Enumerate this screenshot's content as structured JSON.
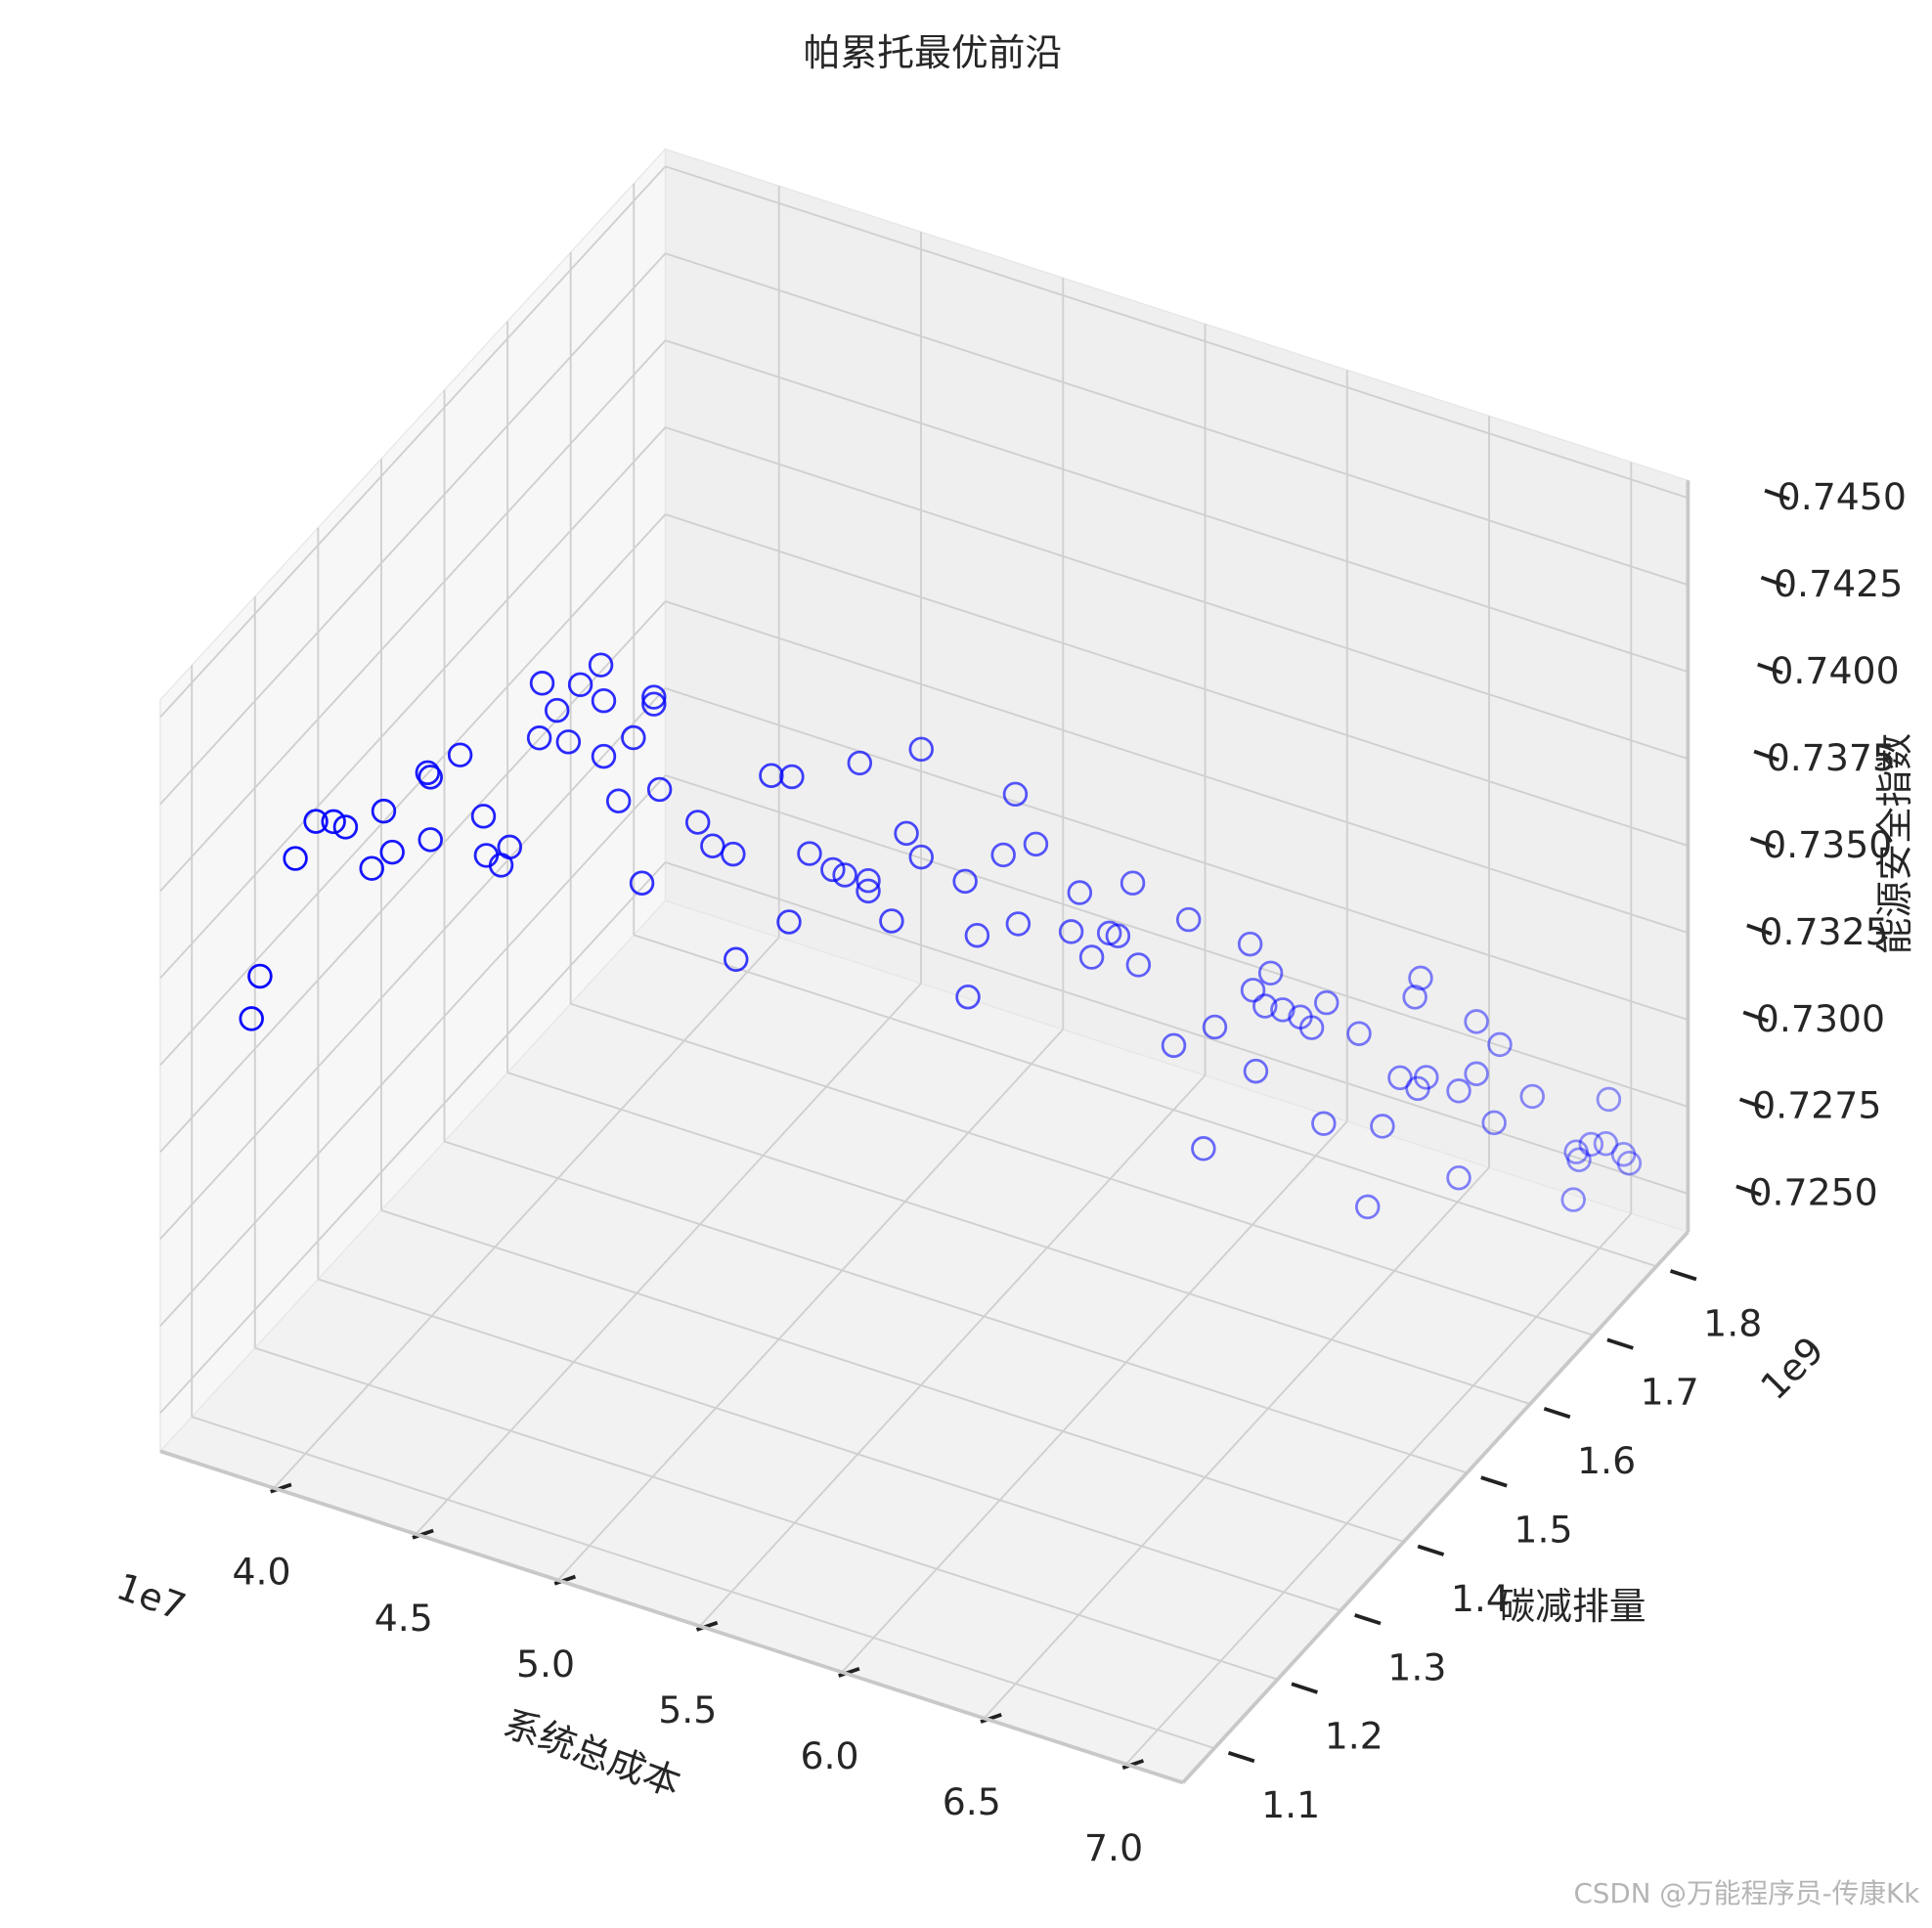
{
  "chart_data": {
    "type": "scatter3d",
    "title": "帕累托最优前沿",
    "xlabel": "系统总成本",
    "ylabel": "碳减排量",
    "zlabel": "能源安全指数",
    "x_offset": "1e7",
    "y_offset": "1e9",
    "xlim": [
      3.6,
      7.2
    ],
    "ylim": [
      1.05,
      1.85
    ],
    "zlim": [
      0.7239,
      0.7455
    ],
    "xticks": [
      {
        "value": 4,
        "label": "4.0"
      },
      4.5,
      {
        "value": 5,
        "label": "5.0"
      },
      5.5,
      {
        "value": 6,
        "label": "6.0"
      },
      6.5,
      {
        "value": 7,
        "label": "7.0"
      }
    ],
    "yticks": [
      1.1,
      1.2,
      1.3,
      1.4,
      1.5,
      1.6,
      1.7,
      1.8
    ],
    "zticks": [
      {
        "value": 0.725,
        "label": "0.7250"
      },
      {
        "value": 0.7275,
        "label": "0.7275"
      },
      {
        "value": 0.73,
        "label": "0.7300"
      },
      {
        "value": 0.7325,
        "label": "0.7325"
      },
      {
        "value": 0.735,
        "label": "0.7350"
      },
      {
        "value": 0.7375,
        "label": "0.7375"
      },
      {
        "value": 0.74,
        "label": "0.7400"
      },
      {
        "value": 0.7425,
        "label": "0.7425"
      },
      {
        "value": 0.745,
        "label": "0.7450"
      }
    ],
    "grid": true,
    "series": [
      {
        "color": "#0000ff",
        "x": [
          3.81,
          3.84,
          3.92,
          3.97,
          4.01,
          4.03,
          4.1,
          4.12,
          4.15,
          4.23,
          4.24,
          4.24,
          4.3,
          4.36,
          4.37,
          4.4,
          4.43,
          4.49,
          4.5,
          4.53,
          4.57,
          4.59,
          4.64,
          4.65,
          4.65,
          4.68,
          4.71,
          4.74,
          4.76,
          4.76,
          4.78,
          4.87,
          4.9,
          4.95,
          4.96,
          5.04,
          5.08,
          5.09,
          5.13,
          5.19,
          5.21,
          5.24,
          5.27,
          5.27,
          5.33,
          5.36,
          5.39,
          5.39,
          5.5,
          5.51,
          5.52,
          5.59,
          5.61,
          5.62,
          5.66,
          5.74,
          5.77,
          5.79,
          5.83,
          5.86,
          5.89,
          5.91,
          5.99,
          6.02,
          6.05,
          6.09,
          6.17,
          6.18,
          6.19,
          6.2,
          6.22,
          6.24,
          6.28,
          6.32,
          6.34,
          6.35,
          6.42,
          6.45,
          6.48,
          6.52,
          6.55,
          6.56,
          6.57,
          6.59,
          6.66,
          6.66,
          6.7,
          6.7,
          6.74,
          6.76,
          6.83,
          6.93,
          6.94,
          6.95,
          6.97,
          7.0,
          7.01,
          7.04,
          7.06
        ],
        "y": [
          1.1,
          1.1,
          1.12,
          1.13,
          1.14,
          1.15,
          1.16,
          1.17,
          1.17,
          1.19,
          1.19,
          1.19,
          1.21,
          1.22,
          1.22,
          1.23,
          1.23,
          1.25,
          1.25,
          1.26,
          1.26,
          1.27,
          1.28,
          1.28,
          1.28,
          1.29,
          1.3,
          1.3,
          1.31,
          1.31,
          1.31,
          1.33,
          1.34,
          1.35,
          1.35,
          1.37,
          1.38,
          1.38,
          1.39,
          1.4,
          1.41,
          1.42,
          1.42,
          1.42,
          1.43,
          1.44,
          1.45,
          1.45,
          1.47,
          1.47,
          1.48,
          1.49,
          1.5,
          1.5,
          1.51,
          1.53,
          1.53,
          1.54,
          1.55,
          1.55,
          1.56,
          1.56,
          1.58,
          1.59,
          1.6,
          1.6,
          1.62,
          1.62,
          1.62,
          1.63,
          1.63,
          1.64,
          1.65,
          1.65,
          1.66,
          1.66,
          1.68,
          1.68,
          1.69,
          1.7,
          1.71,
          1.71,
          1.71,
          1.71,
          1.73,
          1.73,
          1.74,
          1.74,
          1.75,
          1.75,
          1.77,
          1.79,
          1.79,
          1.79,
          1.8,
          1.81,
          1.81,
          1.82,
          1.82
        ],
        "z": [
          0.7359,
          0.7372,
          0.7404,
          0.7414,
          0.7413,
          0.741,
          0.7398,
          0.7413,
          0.7402,
          0.7423,
          0.7422,
          0.7404,
          0.7426,
          0.7408,
          0.7397,
          0.7393,
          0.7399,
          0.7428,
          0.7444,
          0.7435,
          0.7427,
          0.7442,
          0.7447,
          0.7437,
          0.7421,
          0.7407,
          0.7424,
          0.7383,
          0.7435,
          0.7433,
          0.7409,
          0.7398,
          0.739,
          0.7387,
          0.7357,
          0.7408,
          0.7365,
          0.7407,
          0.7384,
          0.7379,
          0.7376,
          0.7407,
          0.7374,
          0.7371,
          0.7362,
          0.7386,
          0.7378,
          0.7409,
          0.737,
          0.7337,
          0.7353,
          0.7376,
          0.7392,
          0.7355,
          0.7377,
          0.735,
          0.7362,
          0.7342,
          0.7348,
          0.7348,
          0.7362,
          0.7339,
          0.7314,
          0.7349,
          0.7282,
          0.7318,
          0.734,
          0.7327,
          0.7304,
          0.7321,
          0.7331,
          0.7319,
          0.7316,
          0.7314,
          0.7285,
          0.732,
          0.7309,
          0.726,
          0.7282,
          0.7295,
          0.7317,
          0.7291,
          0.7323,
          0.7295,
          0.7264,
          0.7289,
          0.7293,
          0.7308,
          0.7278,
          0.7301,
          0.7284,
          0.7253,
          0.7267,
          0.7265,
          0.7268,
          0.7267,
          0.728,
          0.7263,
          0.7261
        ]
      }
    ]
  },
  "watermark": "CSDN @万能程序员-传康Kk"
}
